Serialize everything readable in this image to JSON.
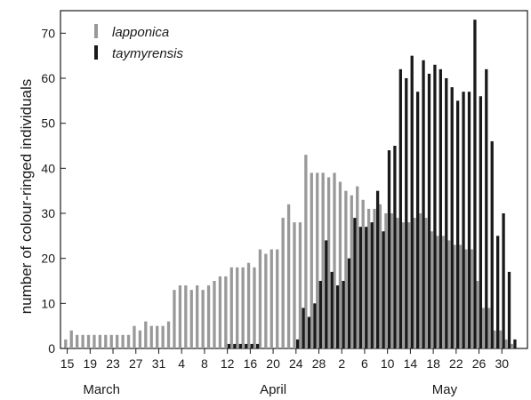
{
  "chart_data": {
    "type": "bar",
    "ylabel": "number of colour-ringed individuals",
    "ylim": [
      0,
      75
    ],
    "yticks": [
      0,
      10,
      20,
      30,
      40,
      50,
      60,
      70
    ],
    "x_start_day": 15,
    "x_tick_labels": [
      "15",
      "19",
      "23",
      "27",
      "31",
      "4",
      "8",
      "12",
      "16",
      "20",
      "24",
      "28",
      "2",
      "6",
      "10",
      "14",
      "18",
      "22",
      "26",
      "30"
    ],
    "x_tick_offsets": [
      0,
      4,
      8,
      12,
      16,
      20,
      24,
      28,
      32,
      36,
      40,
      44,
      48,
      52,
      56,
      60,
      64,
      68,
      72,
      76
    ],
    "months": [
      {
        "label": "March",
        "offset": 6
      },
      {
        "label": "April",
        "offset": 36
      },
      {
        "label": "May",
        "offset": 66
      }
    ],
    "series": [
      {
        "name": "lapponica",
        "color": "#999999",
        "values": [
          2,
          4,
          3,
          3,
          3,
          3,
          3,
          3,
          3,
          3,
          3,
          3,
          5,
          4,
          6,
          5,
          5,
          5,
          6,
          13,
          14,
          14,
          13,
          14,
          13,
          14,
          15,
          16,
          16,
          18,
          18,
          18,
          19,
          18,
          22,
          21,
          22,
          22,
          29,
          32,
          28,
          28,
          43,
          39,
          39,
          39,
          38,
          39,
          37,
          35,
          34,
          36,
          33,
          31,
          31,
          32,
          30,
          30,
          29,
          28,
          28,
          29,
          30,
          29,
          26,
          25,
          25,
          24,
          23,
          23,
          22,
          22,
          15,
          9,
          9,
          4,
          4,
          2,
          1,
          0
        ],
        "offset_start": 0
      },
      {
        "name": "taymyrensis",
        "color": "#1a1a1a",
        "values": [
          1,
          1,
          1,
          1,
          1,
          1,
          0,
          0,
          0,
          0,
          0,
          0,
          2,
          9,
          7,
          10,
          15,
          24,
          17,
          14,
          15,
          20,
          29,
          27,
          27,
          28,
          35,
          26,
          44,
          45,
          62,
          60,
          65,
          57,
          64,
          61,
          63,
          62,
          60,
          58,
          55,
          57,
          57,
          73,
          56,
          62,
          46,
          25,
          30,
          17,
          2
        ],
        "offset_start": 28
      }
    ]
  }
}
